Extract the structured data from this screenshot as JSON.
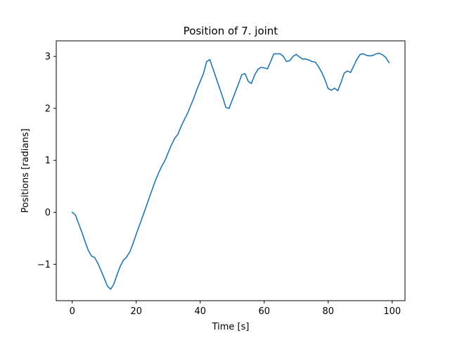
{
  "chart_data": {
    "type": "line",
    "title": "Position of 7. joint",
    "xlabel": "Time [s]",
    "ylabel": "Positions [radians]",
    "xlim": [
      -5,
      104
    ],
    "ylim": [
      -1.7,
      3.3
    ],
    "xticks": [
      0,
      20,
      40,
      60,
      80,
      100
    ],
    "yticks": [
      -1,
      0,
      1,
      2,
      3
    ],
    "ytick_labels": [
      "−1",
      "0",
      "1",
      "2",
      "3"
    ],
    "grid": false,
    "line_color": "#1f77b4",
    "series": [
      {
        "x": [
          0,
          1,
          2,
          3,
          4,
          5,
          6,
          7,
          8,
          9,
          10,
          11,
          12,
          13,
          14,
          15,
          16,
          17,
          18,
          19,
          20,
          21,
          22,
          23,
          24,
          25,
          26,
          27,
          28,
          29,
          30,
          31,
          32,
          33,
          34,
          35,
          36,
          37,
          38,
          39,
          40,
          41,
          42,
          43,
          44,
          45,
          46,
          47,
          48,
          49,
          50,
          51,
          52,
          53,
          54,
          55,
          56,
          57,
          58,
          59,
          60,
          61,
          62,
          63,
          64,
          65,
          66,
          67,
          68,
          69,
          70,
          71,
          72,
          73,
          74,
          75,
          76,
          77,
          78,
          79,
          80,
          81,
          82,
          83,
          84,
          85,
          86,
          87,
          88,
          89,
          90,
          91,
          92,
          93,
          94,
          95,
          96,
          97,
          98,
          99
        ],
        "values": [
          0.0,
          -0.05,
          -0.22,
          -0.38,
          -0.56,
          -0.73,
          -0.84,
          -0.87,
          -0.98,
          -1.12,
          -1.27,
          -1.42,
          -1.48,
          -1.38,
          -1.2,
          -1.04,
          -0.92,
          -0.86,
          -0.76,
          -0.6,
          -0.42,
          -0.25,
          -0.08,
          0.09,
          0.27,
          0.44,
          0.61,
          0.76,
          0.89,
          1.0,
          1.15,
          1.3,
          1.42,
          1.5,
          1.65,
          1.78,
          1.9,
          2.05,
          2.2,
          2.37,
          2.52,
          2.67,
          2.9,
          2.94,
          2.76,
          2.58,
          2.4,
          2.22,
          2.02,
          2.0,
          2.16,
          2.32,
          2.48,
          2.65,
          2.67,
          2.52,
          2.48,
          2.64,
          2.75,
          2.79,
          2.78,
          2.76,
          2.9,
          3.05,
          3.05,
          3.05,
          3.0,
          2.9,
          2.92,
          3.0,
          3.04,
          2.99,
          2.95,
          2.95,
          2.93,
          2.9,
          2.89,
          2.8,
          2.69,
          2.55,
          2.38,
          2.35,
          2.39,
          2.34,
          2.5,
          2.68,
          2.72,
          2.69,
          2.82,
          2.95,
          3.04,
          3.05,
          3.02,
          3.01,
          3.02,
          3.05,
          3.06,
          3.03,
          2.98,
          2.88
        ]
      }
    ]
  }
}
